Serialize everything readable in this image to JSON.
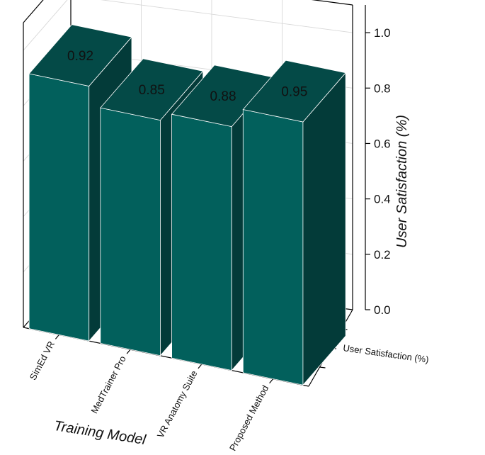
{
  "chart_data": {
    "type": "bar",
    "style": "3d",
    "categories": [
      "SimEd VR",
      "MedTrainer Pro",
      "VR Anatomy Suite",
      "Proposed Method"
    ],
    "series": [
      {
        "name": "User Satisfaction (%)",
        "values": [
          0.92,
          0.85,
          0.88,
          0.95
        ]
      }
    ],
    "data_labels": [
      "0.92",
      "0.85",
      "0.88",
      "0.95"
    ],
    "xlabel": "Training Model",
    "ylabel": "User Satisfaction (%)",
    "depth_label": "User Satisfaction (%)",
    "ylim": [
      0,
      1.1
    ],
    "yticks": [
      0.0,
      0.2,
      0.4,
      0.6,
      0.8,
      1.0
    ],
    "ytick_labels": [
      "0.0",
      "0.2",
      "0.4",
      "0.6",
      "0.8",
      "1.0"
    ],
    "grid": true,
    "colors": {
      "front": "#02605c",
      "top": "#044a47",
      "side": "#033b39",
      "edge": "#ffffff"
    }
  }
}
